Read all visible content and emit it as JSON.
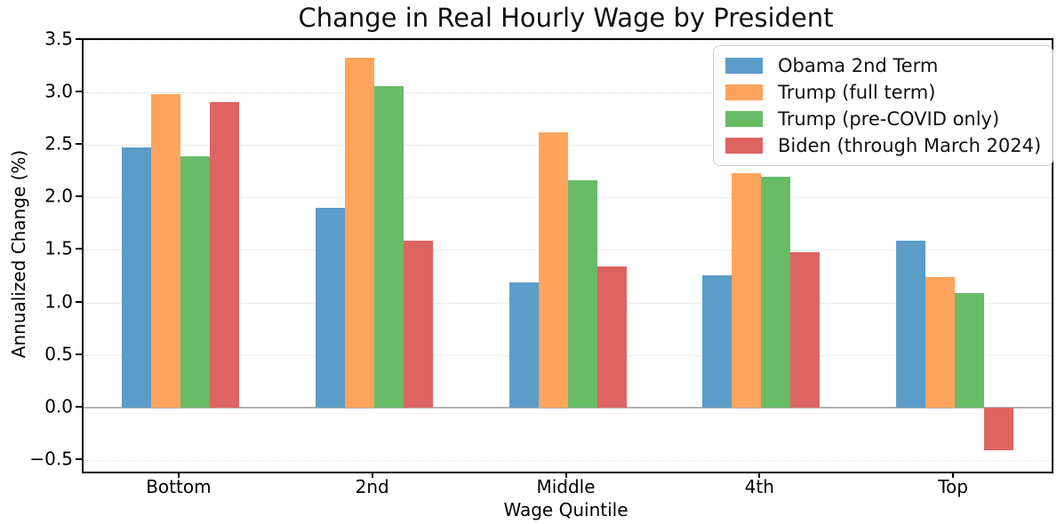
{
  "chart_data": {
    "type": "bar",
    "title": "Change in Real Hourly Wage by President",
    "xlabel": "Wage Quintile",
    "ylabel": "Annualized Change (%)",
    "categories": [
      "Bottom",
      "2nd",
      "Middle",
      "4th",
      "Top"
    ],
    "series": [
      {
        "name": "Obama 2nd Term",
        "color": "#5c9cc9",
        "values": [
          2.48,
          1.9,
          1.19,
          1.26,
          1.59
        ]
      },
      {
        "name": "Trump (full term)",
        "color": "#ffa45c",
        "values": [
          2.98,
          3.33,
          2.62,
          2.23,
          1.24
        ]
      },
      {
        "name": "Trump (pre-COVID only)",
        "color": "#68bc66",
        "values": [
          2.39,
          3.06,
          2.16,
          2.2,
          1.09
        ]
      },
      {
        "name": "Biden (through March 2024)",
        "color": "#dd6461",
        "values": [
          2.91,
          1.59,
          1.34,
          1.48,
          -0.41
        ]
      }
    ],
    "ylim": [
      -0.61,
      3.5
    ],
    "yticks": [
      -0.5,
      0.0,
      0.5,
      1.0,
      1.5,
      2.0,
      2.5,
      3.0,
      3.5
    ],
    "yticklabels": [
      "−0.5",
      "0.0",
      "0.5",
      "1.0",
      "1.5",
      "2.0",
      "2.5",
      "3.0",
      "3.5"
    ],
    "grid": true,
    "zero_line": true,
    "legend_position": "upper right",
    "colors": {
      "grid": "#d8d8d8",
      "zero_line": "#b2b2b2",
      "spine": "#000000",
      "legend_border": "#cccccc",
      "background": "#ffffff"
    }
  }
}
